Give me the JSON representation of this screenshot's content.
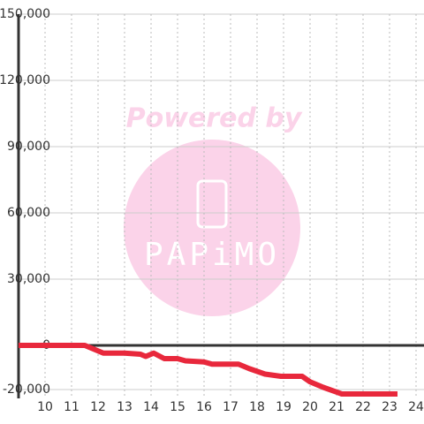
{
  "chart_data": {
    "type": "line",
    "x": [
      9,
      11.5,
      11.8,
      12.2,
      13,
      13.6,
      13.8,
      14.1,
      14.5,
      15,
      15.3,
      16,
      16.3,
      17.3,
      17.7,
      18.3,
      18.9,
      19.7,
      20,
      20.5,
      21.2,
      23.3
    ],
    "values": [
      0,
      0,
      -1500,
      -3500,
      -3500,
      -4000,
      -5000,
      -3500,
      -6000,
      -6000,
      -7000,
      -7500,
      -8500,
      -8500,
      -10500,
      -13000,
      -14000,
      -14000,
      -16500,
      -19000,
      -22000,
      -22000
    ],
    "color": "#e8283c",
    "xlim": [
      9,
      24.3
    ],
    "xticks": [
      10,
      11,
      12,
      13,
      14,
      15,
      16,
      17,
      18,
      19,
      20,
      21,
      22,
      23,
      24
    ],
    "ylim": [
      -24000,
      150000
    ],
    "yticks": [
      {
        "value": -20000,
        "label": "-20,000"
      },
      0,
      {
        "value": 30000,
        "label": "30,000"
      },
      {
        "value": 60000,
        "label": "60,000"
      },
      {
        "value": 90000,
        "label": "90,000"
      },
      {
        "value": 120000,
        "label": "120,000"
      },
      {
        "value": 150000,
        "label": "150,000"
      }
    ],
    "grid": true,
    "watermark": [
      "Powered by",
      "PAPiMO"
    ]
  }
}
